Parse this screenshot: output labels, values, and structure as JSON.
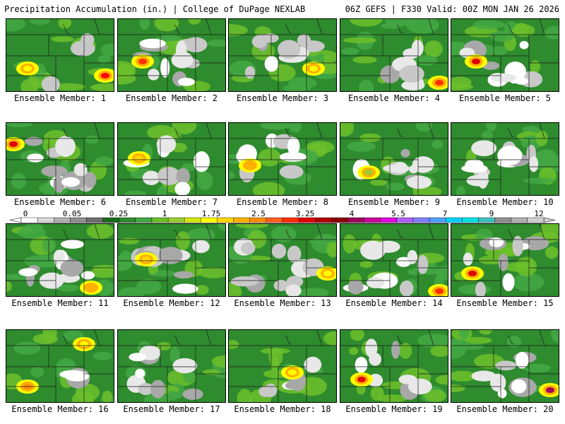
{
  "header": {
    "left_title": "Precipitation Accumulation (in.) | College of DuPage NEXLAB",
    "right_title": "06Z GEFS | F330 Valid: 00Z MON JAN 26 2026"
  },
  "colorbar": {
    "tick_labels": [
      "0",
      "0.05",
      "0.25",
      "1",
      "1.75",
      "2.5",
      "3.25",
      "4",
      "5.5",
      "7",
      "9",
      "12"
    ],
    "colors": [
      "#ffffff",
      "#d8d8d8",
      "#b0b0b0",
      "#909090",
      "#6e6e6e",
      "#1f6b1f",
      "#2e8b2e",
      "#43a843",
      "#6cc02a",
      "#9acd32",
      "#d4e80f",
      "#ffff00",
      "#ffd700",
      "#ffb000",
      "#ff8c00",
      "#ff6020",
      "#ff3000",
      "#e00000",
      "#b00000",
      "#8b0000",
      "#a0005a",
      "#c8009a",
      "#e000e0",
      "#b060ff",
      "#8080ff",
      "#50a0ff",
      "#00d0ff",
      "#00e0e0",
      "#40c0c0",
      "#909090",
      "#b0b0b0",
      "#d0d0d0"
    ]
  },
  "panels": [
    {
      "label": "Ensemble Member: 1",
      "white": 0.15,
      "hotspots": [
        {
          "c": "#ffff00"
        },
        {
          "c": "#ff0000"
        }
      ]
    },
    {
      "label": "Ensemble Member: 2",
      "white": 0.55,
      "hotspots": [
        {
          "c": "#ff3000"
        }
      ]
    },
    {
      "label": "Ensemble Member: 3",
      "white": 0.45,
      "hotspots": [
        {
          "c": "#ffff00"
        }
      ]
    },
    {
      "label": "Ensemble Member: 4",
      "white": 0.4,
      "hotspots": [
        {
          "c": "#ff3000"
        }
      ]
    },
    {
      "label": "Ensemble Member: 5",
      "white": 0.45,
      "hotspots": [
        {
          "c": "#e00000"
        }
      ]
    },
    {
      "label": "Ensemble Member: 6",
      "white": 0.55,
      "hotspots": [
        {
          "c": "#e00000"
        }
      ]
    },
    {
      "label": "Ensemble Member: 7",
      "white": 0.35,
      "hotspots": [
        {
          "c": "#ffd700"
        }
      ]
    },
    {
      "label": "Ensemble Member: 8",
      "white": 0.35,
      "hotspots": [
        {
          "c": "#ffb000"
        }
      ]
    },
    {
      "label": "Ensemble Member: 9",
      "white": 0.4,
      "hotspots": [
        {
          "c": "#9acd32"
        }
      ]
    },
    {
      "label": "Ensemble Member: 10",
      "white": 0.6,
      "hotspots": []
    },
    {
      "label": "Ensemble Member: 11",
      "white": 0.55,
      "hotspots": [
        {
          "c": "#ffb000"
        }
      ]
    },
    {
      "label": "Ensemble Member: 12",
      "white": 0.45,
      "hotspots": [
        {
          "c": "#ffd700"
        }
      ]
    },
    {
      "label": "Ensemble Member: 13",
      "white": 0.5,
      "hotspots": [
        {
          "c": "#ffff00"
        }
      ]
    },
    {
      "label": "Ensemble Member: 14",
      "white": 0.5,
      "hotspots": [
        {
          "c": "#ff3000"
        }
      ]
    },
    {
      "label": "Ensemble Member: 15",
      "white": 0.4,
      "hotspots": [
        {
          "c": "#e00000"
        }
      ]
    },
    {
      "label": "Ensemble Member: 16",
      "white": 0.15,
      "hotspots": [
        {
          "c": "#ffff00"
        },
        {
          "c": "#ff8c00"
        }
      ]
    },
    {
      "label": "Ensemble Member: 17",
      "white": 0.4,
      "hotspots": []
    },
    {
      "label": "Ensemble Member: 18",
      "white": 0.25,
      "hotspots": [
        {
          "c": "#ffff00"
        }
      ]
    },
    {
      "label": "Ensemble Member: 19",
      "white": 0.35,
      "hotspots": [
        {
          "c": "#e00000"
        }
      ]
    },
    {
      "label": "Ensemble Member: 20",
      "white": 0.35,
      "hotspots": [
        {
          "c": "#a0005a"
        }
      ]
    }
  ]
}
